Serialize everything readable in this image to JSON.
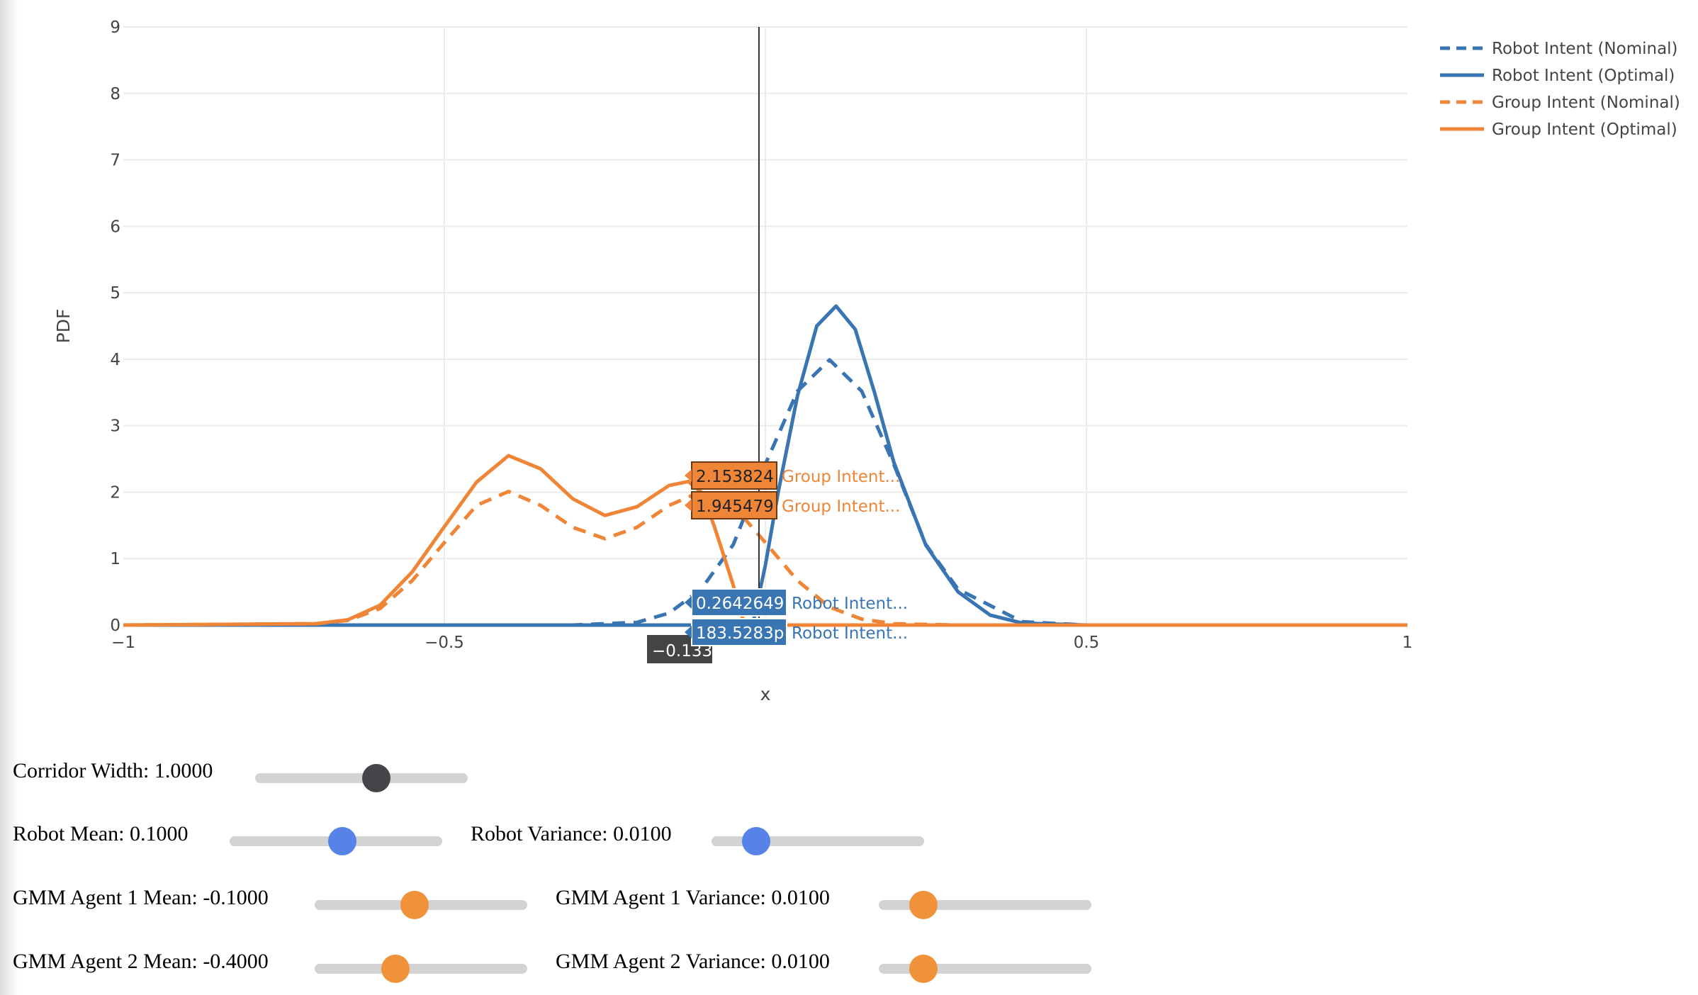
{
  "chart_data": {
    "type": "line",
    "xlabel": "x",
    "ylabel": "PDF",
    "xlim": [
      -1,
      1
    ],
    "ylim": [
      0,
      9
    ],
    "x_ticks": [
      -1,
      -0.5,
      0,
      0.5,
      1
    ],
    "x_tick_labels": [
      "−1",
      "−0.5",
      "",
      "0.5",
      "1"
    ],
    "y_ticks": [
      0,
      1,
      2,
      3,
      4,
      5,
      6,
      7,
      8,
      9
    ],
    "y_tick_labels": [
      "0",
      "1",
      "2",
      "3",
      "4",
      "5",
      "6",
      "7",
      "8",
      "9"
    ],
    "grid": true,
    "legend_position": "top-right",
    "series": [
      {
        "name": "Robot Intent (Nominal)",
        "color": "#3a75b3",
        "dash": true,
        "x": [
          -1.0,
          -0.5,
          -0.3,
          -0.2,
          -0.15,
          -0.1,
          -0.05,
          0.0,
          0.05,
          0.1,
          0.15,
          0.2,
          0.25,
          0.3,
          0.4,
          0.5,
          1.0
        ],
        "y": [
          0.0,
          0.0,
          0.0,
          0.04,
          0.18,
          0.54,
          1.21,
          2.42,
          3.52,
          3.99,
          3.52,
          2.42,
          1.21,
          0.54,
          0.05,
          0.0,
          0.0
        ]
      },
      {
        "name": "Robot Intent (Optimal)",
        "color": "#3a75b3",
        "dash": false,
        "x": [
          -1.0,
          -0.5,
          -0.2,
          -0.02,
          0.0,
          0.02,
          0.05,
          0.08,
          0.11,
          0.14,
          0.17,
          0.2,
          0.25,
          0.3,
          0.35,
          0.4,
          0.5,
          1.0
        ],
        "y": [
          0.0,
          0.0,
          0.0,
          0.0,
          0.9,
          2.0,
          3.45,
          4.5,
          4.8,
          4.45,
          3.5,
          2.45,
          1.2,
          0.5,
          0.15,
          0.03,
          0.0,
          0.0
        ]
      },
      {
        "name": "Group Intent (Nominal)",
        "color": "#ef8637",
        "dash": true,
        "x": [
          -1.0,
          -0.7,
          -0.65,
          -0.6,
          -0.55,
          -0.5,
          -0.45,
          -0.4,
          -0.35,
          -0.3,
          -0.25,
          -0.2,
          -0.15,
          -0.1,
          -0.05,
          0.0,
          0.05,
          0.1,
          0.15,
          0.2,
          0.3,
          1.0
        ],
        "y": [
          0.0,
          0.02,
          0.07,
          0.25,
          0.67,
          1.24,
          1.8,
          2.01,
          1.8,
          1.47,
          1.3,
          1.47,
          1.8,
          2.01,
          1.8,
          1.24,
          0.67,
          0.27,
          0.09,
          0.02,
          0.0,
          0.0
        ]
      },
      {
        "name": "Group Intent (Optimal)",
        "color": "#ef8637",
        "dash": false,
        "x": [
          -1.0,
          -0.7,
          -0.65,
          -0.6,
          -0.55,
          -0.5,
          -0.45,
          -0.4,
          -0.35,
          -0.3,
          -0.25,
          -0.2,
          -0.15,
          -0.12,
          -0.1,
          -0.08,
          -0.05,
          -0.04,
          -0.03,
          1.0
        ],
        "y": [
          0.0,
          0.02,
          0.08,
          0.3,
          0.8,
          1.48,
          2.15,
          2.55,
          2.35,
          1.9,
          1.65,
          1.78,
          2.1,
          2.16,
          2.0,
          1.5,
          0.6,
          0.2,
          0.0,
          0.0
        ]
      }
    ],
    "hover": {
      "x": -0.01,
      "x_label": "−0.133",
      "items": [
        {
          "value": "2.153824",
          "name": "Group Intent...",
          "color": "#ef8637",
          "y": 2.16
        },
        {
          "value": "1.945479",
          "name": "Group Intent...",
          "color": "#ef8637",
          "y": 1.95
        },
        {
          "value": "0.2642649",
          "name": "Robot Intent...",
          "color": "#3a75b3",
          "y": 0.26
        },
        {
          "value": "183.5283p",
          "name": "Robot Intent...",
          "color": "#3a75b3",
          "y": 0.0
        }
      ]
    }
  },
  "controls": [
    [
      {
        "label": "Corridor Width: 1.0000",
        "fraction": 0.57,
        "color": "#444549"
      }
    ],
    [
      {
        "label": "Robot Mean: 0.1000",
        "fraction": 0.53,
        "color": "#5783e8"
      },
      {
        "label": "Robot Variance: 0.0100",
        "fraction": 0.21,
        "color": "#5783e8"
      }
    ],
    [
      {
        "label": "GMM Agent 1 Mean: -0.1000",
        "fraction": 0.47,
        "color": "#f0923a"
      },
      {
        "label": "GMM Agent 1 Variance: 0.0100",
        "fraction": 0.21,
        "color": "#f0923a"
      }
    ],
    [
      {
        "label": "GMM Agent 2 Mean: -0.4000",
        "fraction": 0.38,
        "color": "#f0923a"
      },
      {
        "label": "GMM Agent 2 Variance: 0.0100",
        "fraction": 0.21,
        "color": "#f0923a"
      }
    ]
  ]
}
